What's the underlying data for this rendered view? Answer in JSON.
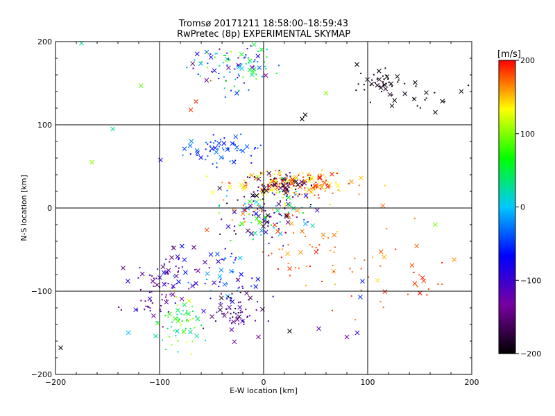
{
  "chart_data": {
    "type": "scatter",
    "title": "Tromsø 20171211 18:58:00–18:59:43",
    "subtitle": "RwPretec (8p) EXPERIMENTAL SKYMAP",
    "xlabel": "E-W location [km]",
    "ylabel": "N-S location [km]",
    "xlim": [
      -200,
      200
    ],
    "ylim": [
      -200,
      200
    ],
    "xticks": [
      -200,
      -100,
      0,
      100,
      200
    ],
    "yticks": [
      -200,
      -100,
      0,
      100,
      200
    ],
    "xtick_labels": [
      "−200",
      "−100",
      "0",
      "100",
      "200"
    ],
    "ytick_labels": [
      "−200",
      "−100",
      "0",
      "100",
      "200"
    ],
    "grid": true,
    "colorbar": {
      "label": "[m/s]",
      "range": [
        -200,
        200
      ],
      "ticks": [
        200,
        100,
        0,
        -100,
        -200
      ],
      "tick_labels": [
        "200",
        "100",
        "0",
        "−100",
        "−200"
      ],
      "colormap": [
        "#000000",
        "#7800a0",
        "#0000ff",
        "#00c8ff",
        "#00ff00",
        "#ffff00",
        "#ff0000"
      ]
    },
    "clusters": [
      {
        "cx": -30,
        "cy": 170,
        "sx": 22,
        "sy": 14,
        "n": 100,
        "vmin": -160,
        "vmax": 120
      },
      {
        "cx": 115,
        "cy": 150,
        "sx": 12,
        "sy": 10,
        "n": 45,
        "vmin": -200,
        "vmax": -180
      },
      {
        "cx": 160,
        "cy": 130,
        "sx": 18,
        "sy": 10,
        "n": 15,
        "vmin": -200,
        "vmax": -190
      },
      {
        "cx": -38,
        "cy": 70,
        "sx": 18,
        "sy": 8,
        "n": 60,
        "vmin": -70,
        "vmax": -20
      },
      {
        "cx": 25,
        "cy": 30,
        "sx": 28,
        "sy": 8,
        "n": 180,
        "vmin": 120,
        "vmax": 200
      },
      {
        "cx": 15,
        "cy": 28,
        "sx": 18,
        "sy": 8,
        "n": 70,
        "vmin": -200,
        "vmax": -150
      },
      {
        "cx": 0,
        "cy": -5,
        "sx": 22,
        "sy": 18,
        "n": 150,
        "vmin": -200,
        "vmax": 200
      },
      {
        "cx": -90,
        "cy": -80,
        "sx": 15,
        "sy": 20,
        "n": 60,
        "vmin": -160,
        "vmax": -60
      },
      {
        "cx": -30,
        "cy": -85,
        "sx": 15,
        "sy": 20,
        "n": 50,
        "vmin": -120,
        "vmax": 0
      },
      {
        "cx": -80,
        "cy": -140,
        "sx": 10,
        "sy": 15,
        "n": 60,
        "vmin": 0,
        "vmax": 140
      },
      {
        "cx": -28,
        "cy": -125,
        "sx": 12,
        "sy": 15,
        "n": 60,
        "vmin": -200,
        "vmax": -80
      },
      {
        "cx": 80,
        "cy": -70,
        "sx": 40,
        "sy": 25,
        "n": 40,
        "vmin": 140,
        "vmax": 200
      },
      {
        "cx": 150,
        "cy": -95,
        "sx": 25,
        "sy": 20,
        "n": 20,
        "vmin": 160,
        "vmax": 200
      },
      {
        "cx": -110,
        "cy": -110,
        "sx": 12,
        "sy": 10,
        "n": 30,
        "vmin": -150,
        "vmax": -80
      },
      {
        "cx": 30,
        "cy": -40,
        "sx": 20,
        "sy": 20,
        "n": 25,
        "vmin": 150,
        "vmax": 200
      }
    ],
    "points": [
      {
        "x": -118,
        "y": 147,
        "v": 90
      },
      {
        "x": -145,
        "y": 95,
        "v": 30
      },
      {
        "x": -165,
        "y": 55,
        "v": 100
      },
      {
        "x": -65,
        "y": 128,
        "v": 190
      },
      {
        "x": -70,
        "y": 118,
        "v": 185
      },
      {
        "x": 60,
        "y": 138,
        "v": 100
      },
      {
        "x": 40,
        "y": 112,
        "v": -200
      },
      {
        "x": 37,
        "y": 107,
        "v": -200
      },
      {
        "x": 165,
        "y": 115,
        "v": -190
      },
      {
        "x": -175,
        "y": 198,
        "v": 30
      },
      {
        "x": -195,
        "y": -168,
        "v": -200
      },
      {
        "x": -130,
        "y": -150,
        "v": 0
      },
      {
        "x": 25,
        "y": -148,
        "v": -200
      },
      {
        "x": 53,
        "y": -145,
        "v": -120
      },
      {
        "x": 90,
        "y": -150,
        "v": -100
      },
      {
        "x": 80,
        "y": -155,
        "v": -130
      },
      {
        "x": 165,
        "y": -20,
        "v": 100
      },
      {
        "x": -5,
        "y": -155,
        "v": -140
      },
      {
        "x": 95,
        "y": -88,
        "v": -60
      },
      {
        "x": 93,
        "y": -107,
        "v": -50
      }
    ]
  }
}
